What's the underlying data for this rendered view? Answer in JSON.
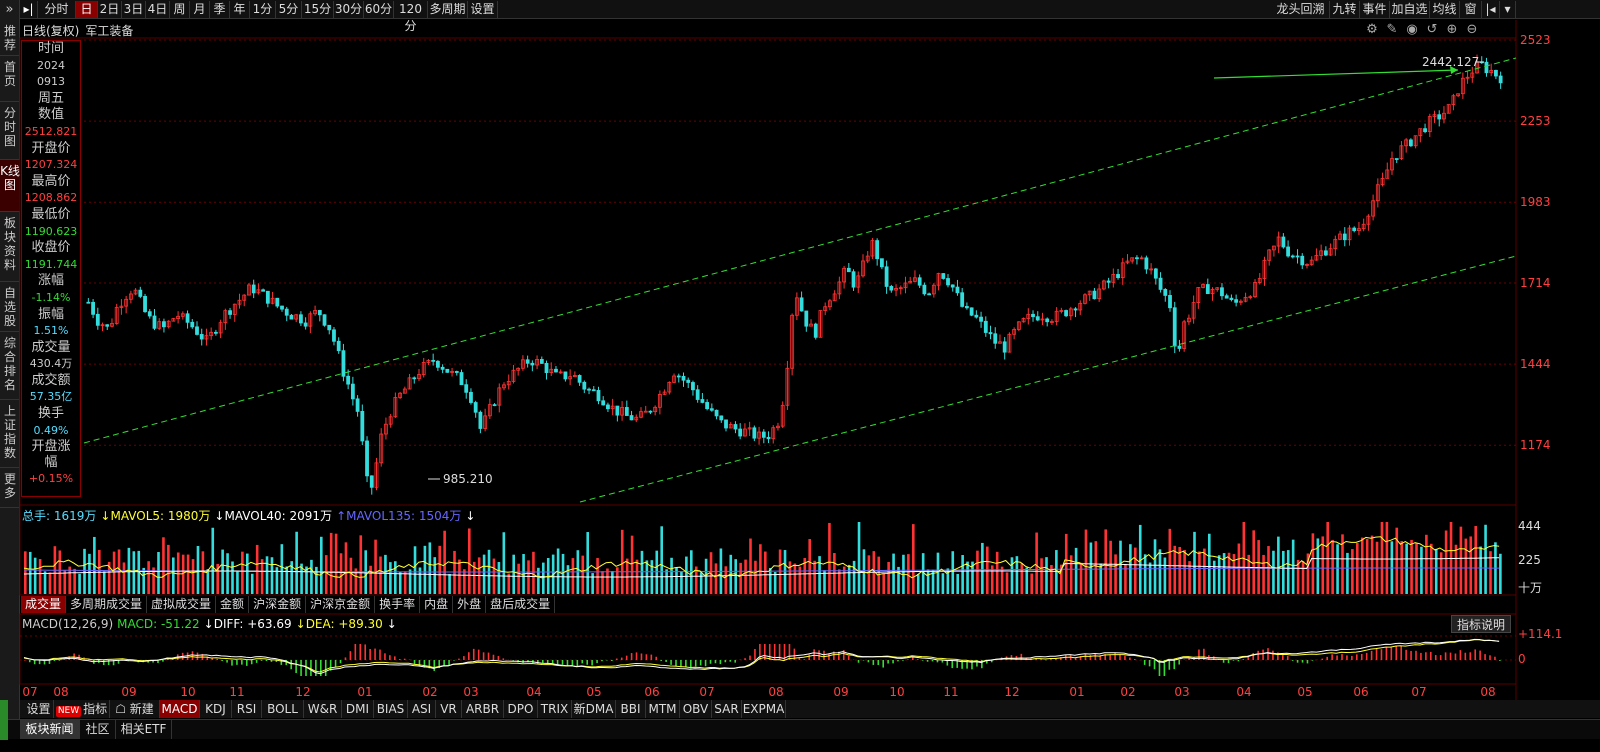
{
  "left_nav": {
    "top_icon": "»",
    "items": [
      {
        "label": "推荐",
        "active": false
      },
      {
        "label": "首页",
        "active": false
      },
      {
        "label": "分时图",
        "active": false
      },
      {
        "label": "K线图",
        "active": true
      },
      {
        "label": "板块资料",
        "active": false
      },
      {
        "label": "自选股",
        "active": false
      },
      {
        "label": "综合排名",
        "active": false
      },
      {
        "label": "上证指数",
        "active": false
      },
      {
        "label": "更多",
        "active": false
      }
    ]
  },
  "toolbar": {
    "pin_icon": "play-to-end-icon",
    "periods": [
      "分时",
      "日",
      "2日",
      "3日",
      "4日",
      "周",
      "月",
      "季",
      "年",
      "1分",
      "5分",
      "15分",
      "30分",
      "60分",
      "120分",
      "多周期",
      "设置"
    ],
    "active_period": "日",
    "right_items": [
      "龙头回溯",
      "九转",
      "事件",
      "加自选",
      "均线",
      "窗"
    ],
    "nav_icons": [
      "prev-icon",
      "dropdown-icon"
    ]
  },
  "title": {
    "line": "日线(复权)",
    "name": "军工装备"
  },
  "chart_icons": [
    "settings-icon",
    "draw-icon",
    "eye-icon",
    "reset-icon",
    "zoom-in-icon",
    "zoom-out-icon"
  ],
  "info_panel": [
    {
      "label": "时间",
      "values": [
        {
          "text": "2024",
          "color": "#cccccc"
        },
        {
          "text": "0913",
          "color": "#cccccc"
        },
        {
          "text": "周五",
          "color": "#cccccc",
          "big": true
        }
      ]
    },
    {
      "label": "数值",
      "values": [
        {
          "text": "2512.821",
          "color": "#ff4040"
        }
      ]
    },
    {
      "label": "开盘价",
      "values": [
        {
          "text": "1207.324",
          "color": "#ff4040"
        }
      ]
    },
    {
      "label": "最高价",
      "values": [
        {
          "text": "1208.862",
          "color": "#ff4040"
        }
      ]
    },
    {
      "label": "最低价",
      "values": [
        {
          "text": "1190.623",
          "color": "#33dd33"
        }
      ]
    },
    {
      "label": "收盘价",
      "values": [
        {
          "text": "1191.744",
          "color": "#33dd33"
        }
      ]
    },
    {
      "label": "涨幅",
      "values": [
        {
          "text": "-1.14%",
          "color": "#33dd33"
        }
      ]
    },
    {
      "label": "振幅",
      "values": [
        {
          "text": "1.51%",
          "color": "#55ddff"
        }
      ]
    },
    {
      "label": "成交量",
      "values": [
        {
          "text": "430.4万",
          "color": "#cccccc"
        }
      ]
    },
    {
      "label": "成交额",
      "values": [
        {
          "text": "57.35亿",
          "color": "#55ddff"
        }
      ]
    },
    {
      "label": "换手",
      "values": [
        {
          "text": "0.49%",
          "color": "#55ddff"
        }
      ]
    },
    {
      "label": "开盘涨幅",
      "values": [
        {
          "text": "+0.15%",
          "color": "#ff4040"
        }
      ]
    }
  ],
  "price_axis": [
    "2523",
    "2253",
    "1983",
    "1714",
    "1444",
    "1174"
  ],
  "price_annotations": {
    "high": "2442.127",
    "low": "985.210"
  },
  "volume_legend": [
    {
      "text": "总手: 1619万",
      "color": "#55ddff"
    },
    {
      "text": "↓MAVOL5: 1980万",
      "color": "#ffff33"
    },
    {
      "text": "↓MAVOL40: 2091万",
      "color": "#ffffff"
    },
    {
      "text": "↑MAVOL135: 1504万",
      "color": "#6666ff"
    },
    {
      "text": "↓",
      "color": "#ffffff"
    }
  ],
  "volume_axis": [
    "444",
    "225",
    "十万"
  ],
  "volume_tabs": [
    "成交量",
    "多周期成交量",
    "虚拟成交量",
    "金额",
    "沪深金额",
    "沪深京金额",
    "换手率",
    "内盘",
    "外盘",
    "盘后成交量"
  ],
  "macd_legend": [
    {
      "text": "MACD(12,26,9)",
      "color": "#cccccc"
    },
    {
      "text": "MACD: -51.22",
      "color": "#33dd33"
    },
    {
      "text": "↓DIFF: +63.69",
      "color": "#ffffff"
    },
    {
      "text": "↓DEA: +89.30",
      "color": "#ffff33"
    },
    {
      "text": "↓",
      "color": "#ffffff"
    }
  ],
  "macd_axis": [
    "+114.1",
    "0"
  ],
  "indicator_button": "指标说明",
  "x_months": [
    "07",
    "08",
    "09",
    "10",
    "11",
    "12",
    "01",
    "02",
    "03",
    "04",
    "05",
    "06",
    "07",
    "08",
    "09",
    "10",
    "11",
    "12",
    "01",
    "02",
    "03",
    "04",
    "05",
    "06",
    "07",
    "08"
  ],
  "bottom_tabs": [
    "设置",
    "指标广场",
    "新建",
    "MACD",
    "KDJ",
    "RSI",
    "BOLL",
    "W&R",
    "DMI",
    "BIAS",
    "ASI",
    "VR",
    "ARBR",
    "DPO",
    "TRIX",
    "新DMA",
    "BBI",
    "MTM",
    "OBV",
    "SAR",
    "EXPMA"
  ],
  "bottom_new_badge": "NEW",
  "active_indicator": "MACD",
  "bottom_bar": [
    "板块新闻",
    "社区",
    "相关ETF"
  ],
  "colors": {
    "up": "#ff3333",
    "down": "#33dddd",
    "trend": "#33dd33",
    "grid": "#6a0000",
    "accent": "#8a0000"
  },
  "chart_data": {
    "type": "candlestick",
    "ylim": [
      985,
      2523
    ],
    "trendlines": "two parallel ascending dashed channel lines",
    "anchors": [
      [
        0,
        1650
      ],
      [
        8,
        1590
      ],
      [
        16,
        1560
      ],
      [
        24,
        1640
      ],
      [
        36,
        1700
      ],
      [
        48,
        1600
      ],
      [
        60,
        1560
      ],
      [
        72,
        1610
      ],
      [
        84,
        1570
      ],
      [
        96,
        1520
      ],
      [
        108,
        1600
      ],
      [
        120,
        1650
      ],
      [
        132,
        1700
      ],
      [
        140,
        1680
      ],
      [
        152,
        1640
      ],
      [
        164,
        1610
      ],
      [
        176,
        1590
      ],
      [
        186,
        1620
      ],
      [
        196,
        1560
      ],
      [
        204,
        1460
      ],
      [
        212,
        1350
      ],
      [
        218,
        1290
      ],
      [
        224,
        1120
      ],
      [
        228,
        985
      ],
      [
        236,
        1190
      ],
      [
        244,
        1280
      ],
      [
        256,
        1360
      ],
      [
        268,
        1420
      ],
      [
        280,
        1460
      ],
      [
        292,
        1420
      ],
      [
        304,
        1380
      ],
      [
        312,
        1320
      ],
      [
        318,
        1230
      ],
      [
        326,
        1300
      ],
      [
        336,
        1380
      ],
      [
        346,
        1420
      ],
      [
        358,
        1460
      ],
      [
        368,
        1440
      ],
      [
        380,
        1400
      ],
      [
        392,
        1410
      ],
      [
        404,
        1360
      ],
      [
        414,
        1340
      ],
      [
        424,
        1300
      ],
      [
        436,
        1270
      ],
      [
        446,
        1260
      ],
      [
        456,
        1300
      ],
      [
        466,
        1360
      ],
      [
        474,
        1420
      ],
      [
        480,
        1400
      ],
      [
        490,
        1360
      ],
      [
        500,
        1300
      ],
      [
        512,
        1250
      ],
      [
        522,
        1230
      ],
      [
        532,
        1220
      ],
      [
        544,
        1200
      ],
      [
        552,
        1210
      ],
      [
        560,
        1260
      ],
      [
        566,
        1450
      ],
      [
        572,
        1700
      ],
      [
        580,
        1600
      ],
      [
        588,
        1540
      ],
      [
        596,
        1640
      ],
      [
        606,
        1700
      ],
      [
        614,
        1760
      ],
      [
        622,
        1700
      ],
      [
        630,
        1810
      ],
      [
        636,
        1850
      ],
      [
        642,
        1760
      ],
      [
        650,
        1680
      ],
      [
        660,
        1700
      ],
      [
        670,
        1720
      ],
      [
        680,
        1680
      ],
      [
        690,
        1760
      ],
      [
        700,
        1700
      ],
      [
        710,
        1620
      ],
      [
        718,
        1600
      ],
      [
        726,
        1560
      ],
      [
        734,
        1520
      ],
      [
        742,
        1500
      ],
      [
        752,
        1560
      ],
      [
        762,
        1600
      ],
      [
        772,
        1610
      ],
      [
        782,
        1600
      ],
      [
        792,
        1620
      ],
      [
        802,
        1650
      ],
      [
        812,
        1670
      ],
      [
        822,
        1700
      ],
      [
        832,
        1740
      ],
      [
        842,
        1780
      ],
      [
        852,
        1800
      ],
      [
        860,
        1760
      ],
      [
        868,
        1700
      ],
      [
        876,
        1640
      ],
      [
        882,
        1460
      ],
      [
        888,
        1580
      ],
      [
        898,
        1680
      ],
      [
        908,
        1700
      ],
      [
        918,
        1680
      ],
      [
        928,
        1640
      ],
      [
        938,
        1680
      ],
      [
        946,
        1700
      ],
      [
        956,
        1800
      ],
      [
        964,
        1860
      ],
      [
        972,
        1820
      ],
      [
        980,
        1800
      ],
      [
        990,
        1780
      ],
      [
        1000,
        1820
      ],
      [
        1010,
        1850
      ],
      [
        1020,
        1880
      ],
      [
        1030,
        1900
      ],
      [
        1040,
        1980
      ],
      [
        1048,
        2050
      ],
      [
        1056,
        2130
      ],
      [
        1064,
        2160
      ],
      [
        1074,
        2200
      ],
      [
        1084,
        2240
      ],
      [
        1094,
        2270
      ],
      [
        1104,
        2300
      ],
      [
        1112,
        2380
      ],
      [
        1120,
        2420
      ],
      [
        1128,
        2442
      ],
      [
        1136,
        2420
      ],
      [
        1143,
        2400
      ]
    ]
  }
}
